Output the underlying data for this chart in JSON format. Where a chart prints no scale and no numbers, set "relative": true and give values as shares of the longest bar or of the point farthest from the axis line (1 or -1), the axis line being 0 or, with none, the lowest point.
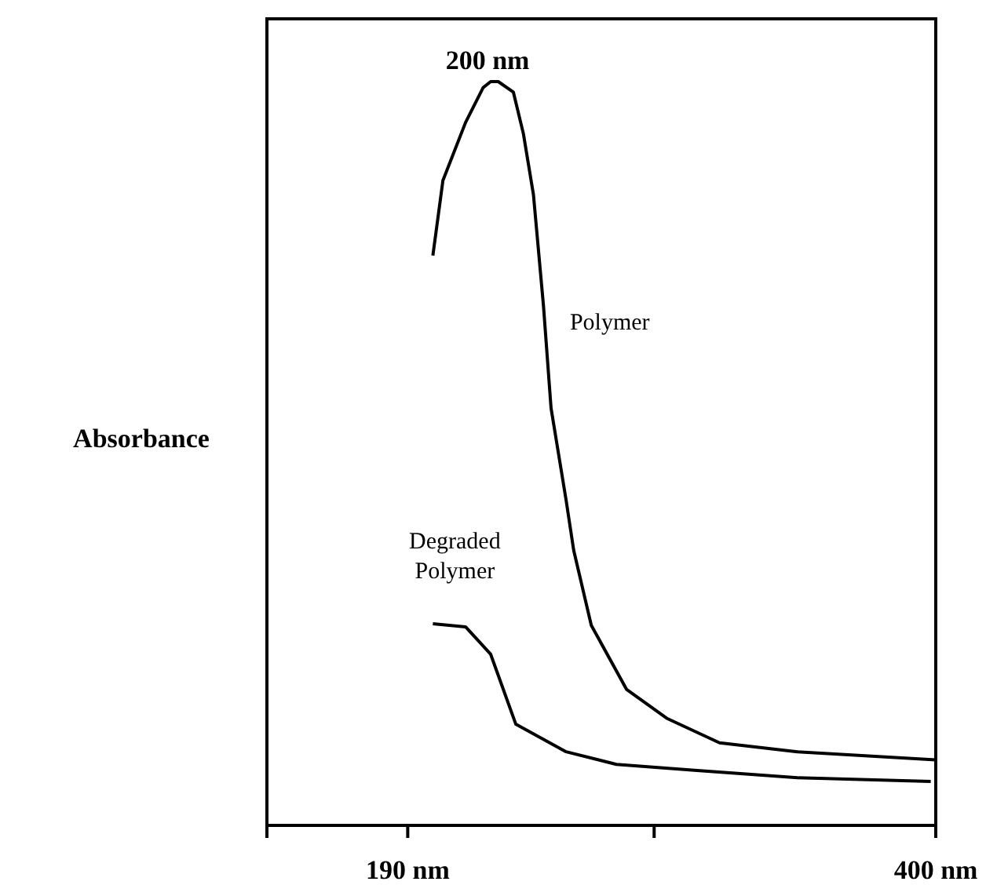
{
  "chart_data": {
    "type": "line",
    "relative": true,
    "ylabel": "Absorbance",
    "annotations": [
      "200 nm"
    ],
    "xlim": [
      134,
      400
    ],
    "xticks": [
      {
        "value": 134,
        "label": null
      },
      {
        "value": 190,
        "label": "190 nm"
      },
      {
        "value": 288,
        "label": null
      },
      {
        "value": 400,
        "label": "400 nm"
      }
    ],
    "tick_labels": "x",
    "grid": false,
    "legend": false,
    "marker": "none",
    "line_style": "solid",
    "series": [
      {
        "name": "Polymer",
        "color": "#000000",
        "x": [
          200,
          204,
          213,
          220,
          223,
          226,
          232,
          236,
          240,
          244,
          247,
          253,
          256,
          263,
          277,
          293,
          314,
          345,
          400
        ],
        "values": [
          0.766,
          0.867,
          0.945,
          0.992,
          1,
          1,
          0.986,
          0.93,
          0.848,
          0.698,
          0.561,
          0.437,
          0.37,
          0.269,
          0.183,
          0.144,
          0.111,
          0.099,
          0.088
        ]
      },
      {
        "name": "Degraded Polymer",
        "color": "#000000",
        "x": [
          200,
          213,
          223,
          233,
          253,
          273,
          304,
          345,
          398
        ],
        "values": [
          0.271,
          0.267,
          0.23,
          0.136,
          0.099,
          0.082,
          0.074,
          0.064,
          0.059
        ]
      }
    ]
  }
}
